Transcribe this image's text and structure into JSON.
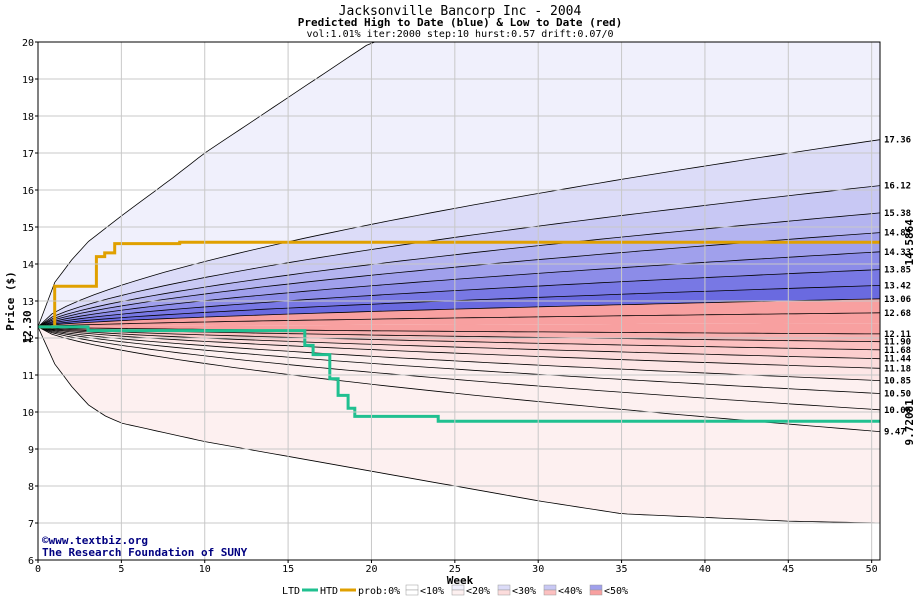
{
  "chart_data": {
    "type": "area",
    "title": "Jacksonville Bancorp Inc - 2004",
    "subtitle": "Predicted High to Date (blue) &  Low to Date (red)",
    "params": "vol:1.01% iter:2000 step:10 hurst:0.57 drift:0.07/0",
    "xlabel": "Week",
    "ylabel": "Price ($)",
    "xlim": [
      0,
      50.5
    ],
    "ylim": [
      6,
      20
    ],
    "x_ticks": [
      "0",
      "5",
      "10",
      "15",
      "20",
      "25",
      "30",
      "35",
      "40",
      "45",
      "50"
    ],
    "y_ticks": [
      "6",
      "7",
      "8",
      "9",
      "10",
      "11",
      "12",
      "13",
      "14",
      "15",
      "16",
      "17",
      "18",
      "19",
      "20"
    ],
    "start_price": 12.3,
    "start_label": "12.30",
    "high_quantiles_end": [
      "17.36",
      "16.12",
      "15.38",
      "14.85",
      "14.33",
      "13.85",
      "13.42",
      "13.06",
      "12.68"
    ],
    "low_quantiles_end": [
      "12.11",
      "11.90",
      "11.68",
      "11.44",
      "11.18",
      "10.85",
      "10.50",
      "10.06",
      "9.47"
    ],
    "upper_bound": {
      "x": [
        0,
        1,
        2,
        3,
        5,
        8,
        10,
        12,
        15,
        18,
        20
      ],
      "y": [
        12.3,
        13.5,
        14.1,
        14.6,
        15.3,
        16.3,
        17.0,
        17.6,
        18.5,
        19.4,
        20.0
      ]
    },
    "lower_bound": {
      "x": [
        0,
        1,
        2,
        3,
        4,
        5,
        8,
        10,
        15,
        20,
        25,
        30,
        35,
        40,
        45,
        50.5
      ],
      "y": [
        12.3,
        11.3,
        10.7,
        10.2,
        9.9,
        9.7,
        9.4,
        9.2,
        8.8,
        8.4,
        8.0,
        7.6,
        7.25,
        7.15,
        7.05,
        7.0
      ]
    },
    "predicted_high_to_date": {
      "name": "prob:0%",
      "color": "#e0a000",
      "x": [
        0,
        1,
        1,
        3.5,
        3.5,
        4,
        4,
        4.6,
        4.6,
        8.5,
        8.5,
        50.5
      ],
      "y": [
        12.3,
        12.3,
        13.4,
        13.4,
        14.2,
        14.2,
        14.3,
        14.3,
        14.55,
        14.55,
        14.59,
        14.59
      ]
    },
    "predicted_low_to_date": {
      "name": "HTD",
      "color": "#20c090",
      "x": [
        0,
        3,
        3,
        16,
        16,
        16.5,
        16.5,
        17.5,
        17.5,
        18,
        18,
        18.6,
        18.6,
        19,
        19,
        24,
        24,
        50.5
      ],
      "y": [
        12.3,
        12.3,
        12.2,
        12.2,
        11.8,
        11.8,
        11.55,
        11.55,
        10.9,
        10.9,
        10.45,
        10.45,
        10.1,
        10.1,
        9.88,
        9.88,
        9.75,
        9.75
      ]
    },
    "high_to_date_value": "14.5864",
    "low_to_date_value": "9.72081",
    "legend": [
      "LTD",
      "HTD",
      "prob:0%",
      "<10%",
      "<20%",
      "<30%",
      "<40%",
      "<50%"
    ],
    "band_colors": [
      "#f0f0fc",
      "#dcdcf8",
      "#c8c8f4",
      "#b4b4f0",
      "#a0a0ec",
      "#8c8ce8",
      "#7878e4",
      "#6a6ae0",
      "#f8a0a0",
      "#f8b0b0",
      "#fcc0c0",
      "#fccece",
      "#fcdcdc",
      "#fde6e6",
      "#fdf0f0"
    ],
    "credit_line1": "©www.textbiz.org",
    "credit_line2": "The Research Foundation of SUNY"
  }
}
